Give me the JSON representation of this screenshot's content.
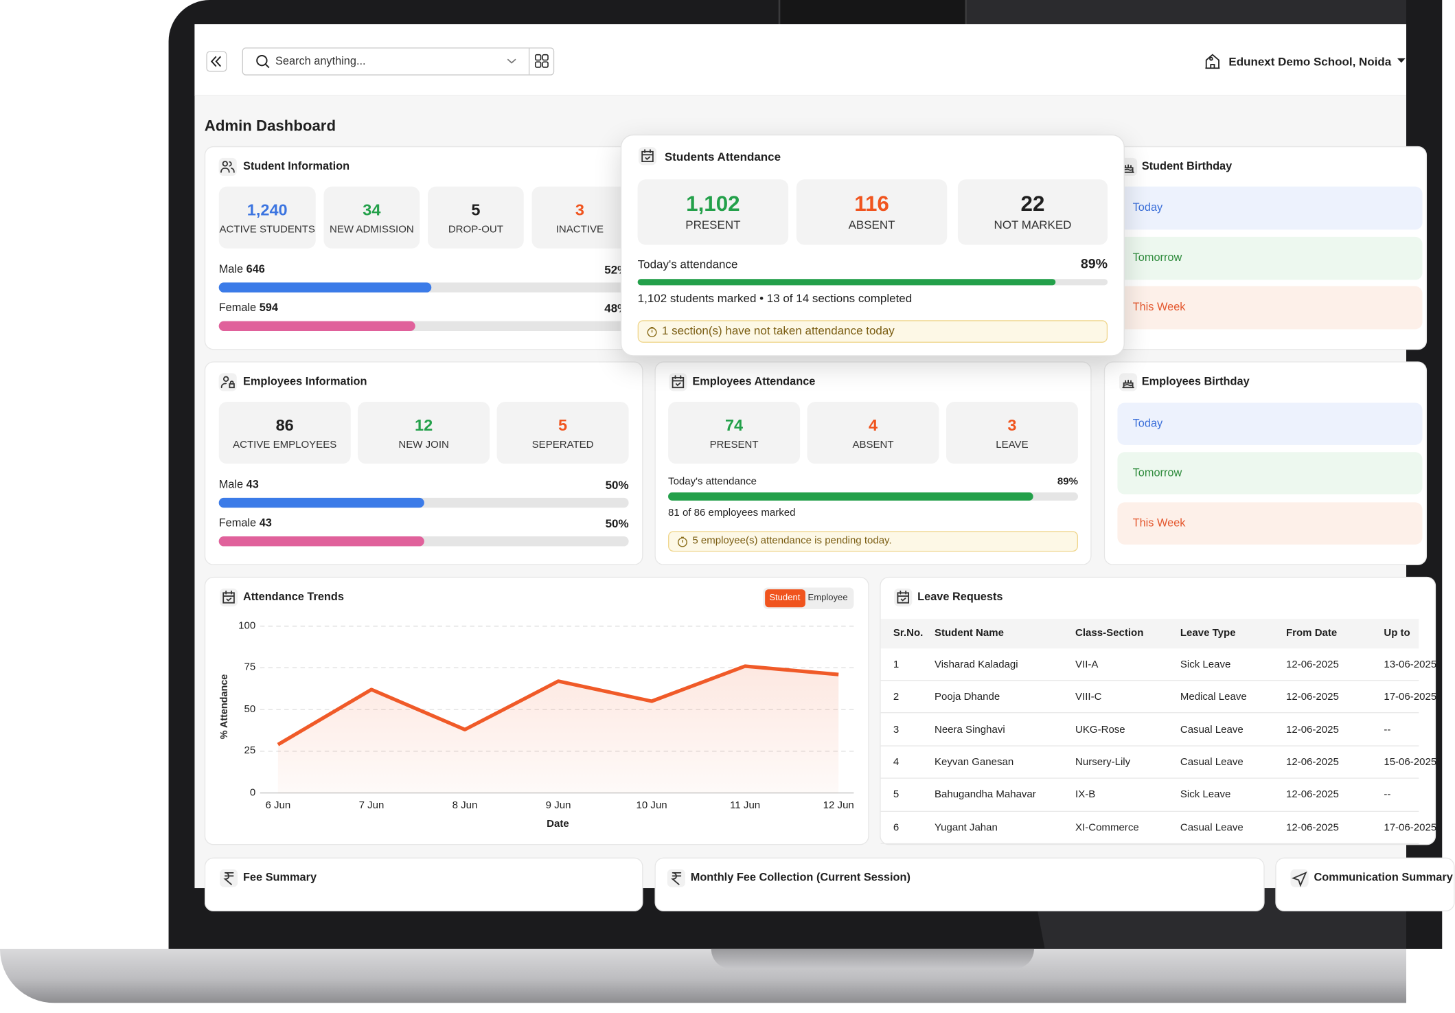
{
  "header": {
    "search_placeholder": "Search anything...",
    "school": "Edunext Demo School, Noida"
  },
  "page_title": "Admin Dashboard",
  "student_information": {
    "title": "Student Information",
    "stats": [
      {
        "value": "1,240",
        "label": "ACTIVE STUDENTS",
        "color": "#3b74e0"
      },
      {
        "value": "34",
        "label": "NEW ADMISSION",
        "color": "#23a04a"
      },
      {
        "value": "5",
        "label": "DROP-OUT",
        "color": "#1f1f1f"
      },
      {
        "value": "3",
        "label": "INACTIVE",
        "color": "#f0541e"
      }
    ],
    "gender": [
      {
        "label": "Male",
        "count": "646",
        "percent": {
          "value": 52,
          "label": "52%"
        },
        "color": "#3b7be8"
      },
      {
        "label": "Female",
        "count": "594",
        "percent": {
          "value": 48,
          "label": "48%"
        },
        "color": "#e0619b"
      }
    ]
  },
  "students_attendance": {
    "title": "Students Attendance",
    "stats": [
      {
        "value": "1,102",
        "label": "PRESENT",
        "color": "#23a04a"
      },
      {
        "value": "116",
        "label": "ABSENT",
        "color": "#f0541e"
      },
      {
        "value": "22",
        "label": "NOT MARKED",
        "color": "#1f1f1f"
      }
    ],
    "today_label": "Today's attendance",
    "percent": {
      "value": 89,
      "label": "89%"
    },
    "color": "#23a04a",
    "summary": "1,102 students marked • 13 of 14 sections completed",
    "warning": "1 section(s) have not taken attendance today"
  },
  "student_birthday": {
    "title": "Student Birthday",
    "rows": [
      {
        "label": "Today",
        "color": "#3b6fd9",
        "background": "#edf2fd"
      },
      {
        "label": "Tomorrow",
        "color": "#2e8b3c",
        "background": "#edf8ef"
      },
      {
        "label": "This Week",
        "color": "#e4572e",
        "background": "#fdf0e9"
      }
    ]
  },
  "employees_information": {
    "title": "Employees Information",
    "stats": [
      {
        "value": "86",
        "label": "ACTIVE EMPLOYEES",
        "color": "#1f1f1f"
      },
      {
        "value": "12",
        "label": "NEW JOIN",
        "color": "#23a04a"
      },
      {
        "value": "5",
        "label": "SEPERATED",
        "color": "#f0541e"
      }
    ],
    "gender": [
      {
        "label": "Male",
        "count": "43",
        "percent": {
          "value": 50,
          "label": "50%"
        },
        "color": "#3b7be8"
      },
      {
        "label": "Female",
        "count": "43",
        "percent": {
          "value": 50,
          "label": "50%"
        },
        "color": "#e0619b"
      }
    ]
  },
  "employees_attendance": {
    "title": "Employees Attendance",
    "stats": [
      {
        "value": "74",
        "label": "PRESENT",
        "color": "#23a04a"
      },
      {
        "value": "4",
        "label": "ABSENT",
        "color": "#f0541e"
      },
      {
        "value": "3",
        "label": "LEAVE",
        "color": "#f0541e"
      }
    ],
    "today_label": "Today's attendance",
    "percent": {
      "value": 89,
      "label": "89%"
    },
    "color": "#23a04a",
    "summary": "81 of 86 employees marked",
    "warning": "5 employee(s) attendance is pending today."
  },
  "employees_birthday": {
    "title": "Employees Birthday",
    "rows": [
      {
        "label": "Today",
        "color": "#3b6fd9",
        "background": "#edf2fd"
      },
      {
        "label": "Tomorrow",
        "color": "#2e8b3c",
        "background": "#edf8ef"
      },
      {
        "label": "This Week",
        "color": "#e4572e",
        "background": "#fdf0e9"
      }
    ]
  },
  "chart_data": {
    "type": "line",
    "title": "Attendance Trends",
    "toggle": [
      "Student",
      "Employee"
    ],
    "x_label": "Date",
    "y_label": "% Attendance",
    "categories": [
      "6 Jun",
      "7 Jun",
      "8 Jun",
      "9 Jun",
      "10 Jun",
      "11 Jun",
      "12 Jun"
    ],
    "series": [
      {
        "color": "#f05a28",
        "values": [
          29,
          62,
          38,
          67,
          55,
          76,
          71
        ]
      }
    ],
    "ylim": [
      0,
      100
    ],
    "yticks": [
      0,
      25,
      50,
      75,
      100
    ],
    "grid": true
  },
  "leave_requests": {
    "title": "Leave Requests",
    "columns": [
      "Sr.No.",
      "Student Name",
      "Class-Section",
      "Leave Type",
      "From Date",
      "Up to"
    ],
    "rows": [
      [
        "1",
        "Visharad Kaladagi",
        "VII-A",
        "Sick Leave",
        "12-06-2025",
        "13-06-2025"
      ],
      [
        "2",
        "Pooja Dhande",
        "VIII-C",
        "Medical Leave",
        "12-06-2025",
        "17-06-2025"
      ],
      [
        "3",
        "Neera Singhavi",
        "UKG-Rose",
        "Casual Leave",
        "12-06-2025",
        "--"
      ],
      [
        "4",
        "Keyvan Ganesan",
        "Nursery-Lily",
        "Casual Leave",
        "12-06-2025",
        "15-06-2025"
      ],
      [
        "5",
        "Bahugandha Mahavar",
        "IX-B",
        "Sick Leave",
        "12-06-2025",
        "--"
      ],
      [
        "6",
        "Yugant Jahan",
        "XI-Commerce",
        "Casual Leave",
        "12-06-2025",
        "17-06-2025"
      ]
    ]
  },
  "bottom_cards": {
    "fee_summary": "Fee Summary",
    "monthly_fee": "Monthly Fee Collection (Current Session)",
    "communication": "Communication Summary"
  }
}
